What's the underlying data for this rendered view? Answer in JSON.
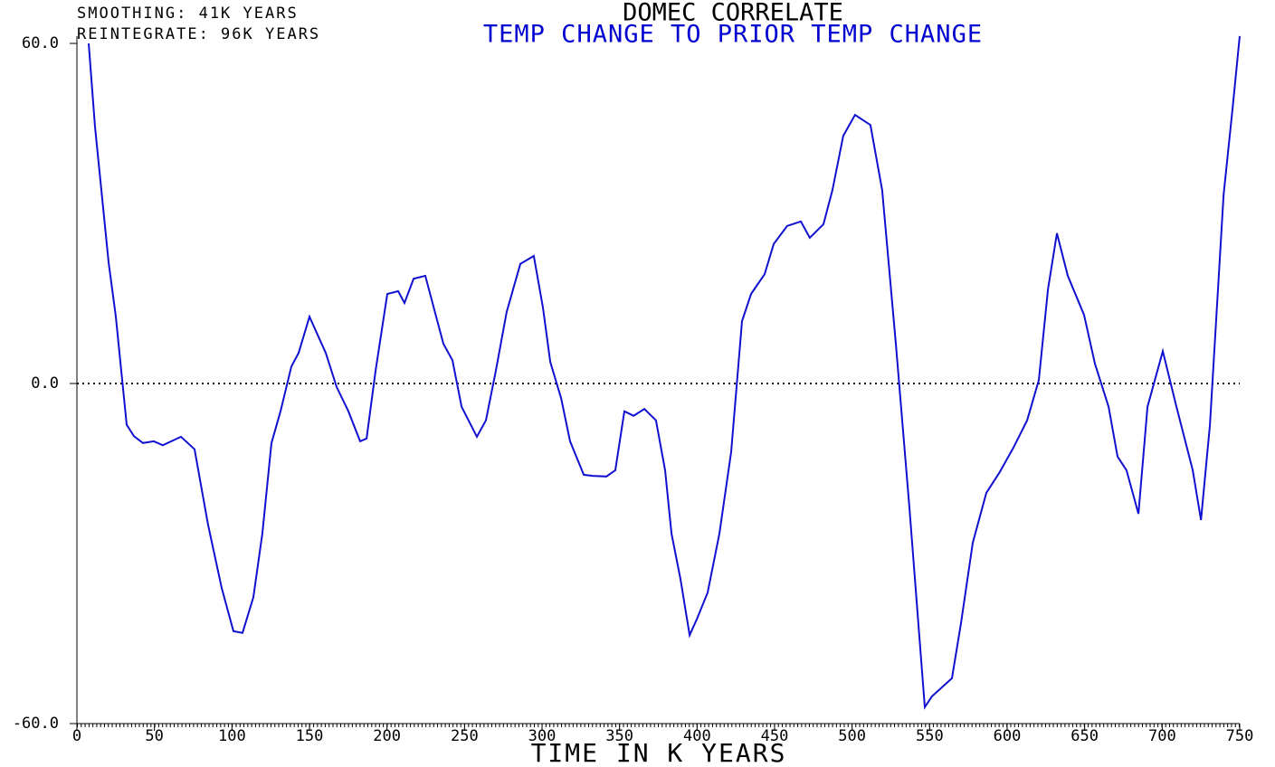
{
  "chart_data": {
    "type": "line",
    "title": "DOMEC CORRELATE",
    "subtitle": "TEMP CHANGE TO PRIOR TEMP CHANGE",
    "annotations": [
      "SMOOTHING: 41K YEARS",
      "REINTEGRATE: 96K YEARS"
    ],
    "x_label": "TIME IN K YEARS",
    "xlim": [
      0,
      750
    ],
    "ylim": [
      -60,
      60
    ],
    "xticks": [
      0,
      50,
      100,
      150,
      200,
      250,
      300,
      350,
      400,
      450,
      500,
      550,
      600,
      650,
      700,
      750
    ],
    "yticks": [
      {
        "value": -60,
        "label": "-60.0"
      },
      {
        "value": 0,
        "label": "0.0"
      },
      {
        "value": 60,
        "label": "60.0"
      }
    ],
    "series": [
      {
        "color": "#1010d0",
        "x": [
          7.6,
          11.7,
          20.4,
          25.1,
          32.1,
          36.8,
          42.6,
          49.6,
          55.4,
          67.1,
          75.9,
          84.6,
          93.4,
          101,
          106.8,
          113.8,
          119.6,
          125.5,
          131.3,
          138.3,
          143,
          150,
          154.7,
          160.5,
          167.5,
          175.1,
          182.7,
          186.8,
          192.6,
          200.2,
          207.2,
          211.3,
          217.2,
          224.7,
          236.4,
          242.2,
          248.1,
          258,
          263.8,
          270.2,
          277.2,
          286,
          294.7,
          300.6,
          305.3,
          312.3,
          318.1,
          326.9,
          332.7,
          341.5,
          347.3,
          353.1,
          359,
          366,
          373.5,
          379.4,
          383.5,
          389.3,
          395.2,
          399.8,
          406.8,
          414.4,
          422,
          429,
          434.8,
          443.6,
          449.4,
          458.1,
          466.9,
          472.7,
          481.5,
          487.3,
          494.3,
          501.9,
          511.8,
          519.4,
          528.2,
          536.9,
          546.9,
          551.5,
          564.4,
          570.2,
          577.8,
          586.6,
          595.3,
          604.1,
          612.9,
          620.4,
          626.3,
          632.1,
          639.1,
          649.6,
          656.6,
          665.4,
          671.2,
          677,
          684.7,
          690.5,
          700.4,
          709.2,
          719.7,
          725,
          730.8,
          739.6,
          745.4,
          750
        ],
        "values": [
          60,
          45.3,
          21.4,
          11.8,
          -7.3,
          -9.3,
          -10.5,
          -10.2,
          -10.9,
          -9.4,
          -11.6,
          -24.9,
          -36.1,
          -43.7,
          -44,
          -37.7,
          -26.5,
          -10.5,
          -4.9,
          3,
          5.4,
          11.8,
          8.9,
          5.4,
          -0.6,
          -4.9,
          -10.2,
          -9.7,
          2.2,
          15.8,
          16.3,
          14.2,
          18.5,
          19,
          7,
          4.1,
          -4.1,
          -9.4,
          -6.5,
          2.2,
          12.6,
          21.1,
          22.5,
          13.4,
          3.8,
          -2.6,
          -10.2,
          -16.1,
          -16.3,
          -16.4,
          -15.3,
          -4.9,
          -5.7,
          -4.5,
          -6.5,
          -15.3,
          -26.5,
          -34.5,
          -44.4,
          -41.6,
          -36.9,
          -26.5,
          -12.1,
          11,
          15.8,
          19.3,
          24.6,
          27.8,
          28.6,
          25.7,
          28.1,
          34.1,
          43.7,
          47.4,
          45.6,
          34.1,
          7,
          -21.7,
          -57.1,
          -55.2,
          -52,
          -42.4,
          -28.1,
          -19.3,
          -15.6,
          -11.3,
          -6.5,
          0.6,
          16.6,
          26.5,
          19,
          12.1,
          3.5,
          -4.1,
          -12.9,
          -15.3,
          -23,
          -4.1,
          5.7,
          -4.1,
          -15.3,
          -24.1,
          -7.3,
          33.3,
          48.5,
          61.3
        ]
      }
    ]
  }
}
